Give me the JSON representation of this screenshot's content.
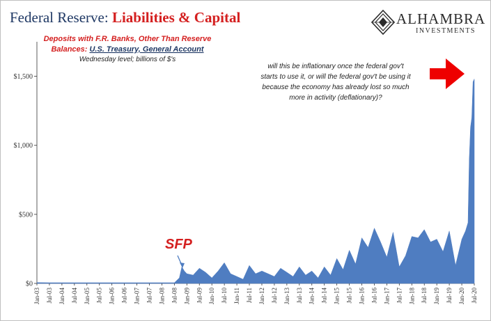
{
  "header": {
    "title_part1": "Federal Reserve: ",
    "title_part2": "Liabilities & Capital"
  },
  "logo": {
    "name": "ALHAMBRA",
    "subtitle": "INVESTMENTS"
  },
  "colors": {
    "title_blue": "#1f3864",
    "accent_red": "#d42020",
    "area_fill": "#4f7dc1"
  },
  "chart_data": {
    "type": "area",
    "subtitle_line1": "Deposits with F.R. Banks, Other Than Reserve",
    "subtitle_line2_prefix": "Balances: ",
    "subtitle_line2_link": "U.S. Treasury, General Account",
    "subtitle_line3": "Wednesday level; billions of $'s",
    "annotation": [
      "will this be inflationary once the federal gov't",
      "starts to use it, or will the federal gov't be using it",
      "because the economy has already lost so much",
      "more in activity (deflationary)?"
    ],
    "event_label": "SFP",
    "event_date": "2008.75",
    "y_tick_labels": [
      "$0",
      "$500",
      "$1,000",
      "$1,500"
    ],
    "y_tick_values": [
      0,
      500,
      1000,
      1500
    ],
    "ylim": [
      0,
      1750
    ],
    "xlim": [
      "2003.0",
      "2020.5"
    ],
    "grid": false,
    "x_tick_labels": [
      "Jan-03",
      "Jul-03",
      "Jan-04",
      "Jul-04",
      "Jan-05",
      "Jul-05",
      "Jan-06",
      "Jul-06",
      "Jan-07",
      "Jul-07",
      "Jan-08",
      "Jul-08",
      "Jan-09",
      "Jul-09",
      "Jan-10",
      "Jul-10",
      "Jan-11",
      "Jul-11",
      "Jan-12",
      "Jul-12",
      "Jan-13",
      "Jul-13",
      "Jan-14",
      "Jul-14",
      "Jan-15",
      "Jul-15",
      "Jan-16",
      "Jul-16",
      "Jan-17",
      "Jul-17",
      "Jan-18",
      "Jul-18",
      "Jan-19",
      "Jul-19",
      "Jan-20",
      "Jul-20"
    ],
    "series": [
      {
        "x": [
          "2003.0",
          "2003.5",
          "2004.0",
          "2004.5",
          "2005.0",
          "2005.5",
          "2006.0",
          "2006.5",
          "2007.0",
          "2007.5",
          "2008.0",
          "2008.5",
          "2008.7",
          "2008.8",
          "2008.9",
          "2009.0",
          "2009.25",
          "2009.5",
          "2009.75",
          "2010.0",
          "2010.25",
          "2010.5",
          "2010.75",
          "2011.0",
          "2011.25",
          "2011.5",
          "2011.75",
          "2012.0",
          "2012.25",
          "2012.5",
          "2012.75",
          "2013.0",
          "2013.25",
          "2013.5",
          "2013.75",
          "2014.0",
          "2014.25",
          "2014.5",
          "2014.75",
          "2015.0",
          "2015.25",
          "2015.5",
          "2015.75",
          "2016.0",
          "2016.25",
          "2016.5",
          "2016.75",
          "2017.0",
          "2017.25",
          "2017.5",
          "2017.75",
          "2018.0",
          "2018.25",
          "2018.5",
          "2018.75",
          "2019.0",
          "2019.25",
          "2019.5",
          "2019.75",
          "2020.0",
          "2020.15",
          "2020.25",
          "2020.3",
          "2020.35",
          "2020.4",
          "2020.45",
          "2020.5"
        ],
        "values": [
          6,
          5,
          5,
          5,
          5,
          5,
          5,
          5,
          5,
          5,
          5,
          5,
          40,
          120,
          90,
          70,
          60,
          110,
          80,
          40,
          90,
          150,
          70,
          50,
          30,
          130,
          70,
          90,
          70,
          50,
          110,
          80,
          50,
          120,
          60,
          90,
          40,
          120,
          60,
          180,
          100,
          240,
          140,
          330,
          260,
          400,
          300,
          190,
          370,
          120,
          200,
          340,
          330,
          390,
          300,
          320,
          230,
          380,
          130,
          320,
          380,
          440,
          900,
          1130,
          1200,
          1460,
          1480
        ]
      }
    ]
  }
}
